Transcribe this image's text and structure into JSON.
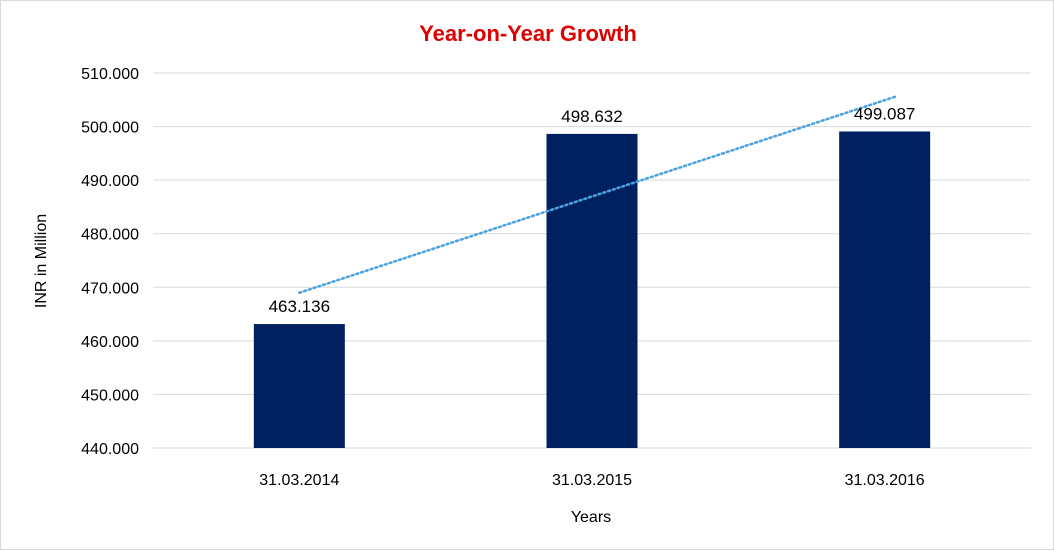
{
  "chart_data": {
    "type": "bar",
    "title": "Year-on-Year Growth",
    "xlabel": "Years",
    "ylabel": "INR in Million",
    "categories": [
      "31.03.2014",
      "31.03.2015",
      "31.03.2016"
    ],
    "series": [
      {
        "values": [
          463.136,
          498.632,
          499.087
        ],
        "data_labels": [
          "463.136",
          "498.632",
          "499.087"
        ]
      }
    ],
    "ylim": [
      440,
      510
    ],
    "yticks": [
      440,
      450,
      460,
      470,
      480,
      490,
      500,
      510
    ],
    "ytick_labels": [
      "440.000",
      "450.000",
      "460.000",
      "470.000",
      "480.000",
      "490.000",
      "500.000",
      "510.000"
    ],
    "trendline": {
      "type": "linear",
      "style": "dotted"
    },
    "grid": true,
    "legend": "none",
    "colors": {
      "bar": "#002060",
      "title": "#e00000",
      "trendline": "#4aa3df",
      "grid": "#d9d9d9"
    }
  }
}
